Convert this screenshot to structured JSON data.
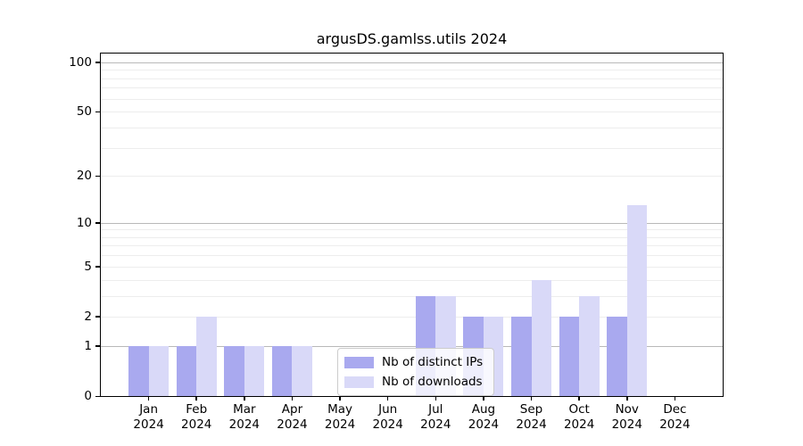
{
  "title": "argusDS.gamlss.utils 2024",
  "colors": {
    "bar_distinct_ips": "#a9a9ef",
    "bar_downloads": "#d9d9f8",
    "grid_major": "#b9b9b9",
    "grid_minor": "#ededed",
    "axis": "#000000",
    "background": "#ffffff"
  },
  "chart_data": {
    "type": "bar",
    "title": "argusDS.gamlss.utils 2024",
    "categories": [
      "Jan 2024",
      "Feb 2024",
      "Mar 2024",
      "Apr 2024",
      "May 2024",
      "Jun 2024",
      "Jul 2024",
      "Aug 2024",
      "Sep 2024",
      "Oct 2024",
      "Nov 2024",
      "Dec 2024"
    ],
    "month_labels": [
      "Jan",
      "Feb",
      "Mar",
      "Apr",
      "May",
      "Jun",
      "Jul",
      "Aug",
      "Sep",
      "Oct",
      "Nov",
      "Dec"
    ],
    "year_label": "2024",
    "series": [
      {
        "name": "Nb of distinct IPs",
        "color": "#a9a9ef",
        "values": [
          1,
          1,
          1,
          1,
          0,
          0,
          3,
          2,
          2,
          2,
          2,
          0
        ]
      },
      {
        "name": "Nb of downloads",
        "color": "#d9d9f8",
        "values": [
          1,
          2,
          1,
          1,
          0,
          0,
          3,
          2,
          4,
          3,
          13,
          0
        ]
      }
    ],
    "xlabel": "",
    "ylabel": "",
    "yscale": "log1p",
    "ylim": [
      0,
      113
    ],
    "yticks": [
      0,
      1,
      2,
      5,
      10,
      20,
      50,
      100
    ],
    "grid_major_at": [
      1,
      10,
      100
    ],
    "grid_minor_at": [
      2,
      3,
      4,
      5,
      6,
      7,
      8,
      9,
      20,
      30,
      40,
      50,
      60,
      70,
      80,
      90
    ],
    "grid": true,
    "legend_position": "lower center"
  },
  "legend": {
    "items": [
      {
        "label": "Nb of distinct IPs",
        "color": "#a9a9ef"
      },
      {
        "label": "Nb of downloads",
        "color": "#d9d9f8"
      }
    ]
  }
}
